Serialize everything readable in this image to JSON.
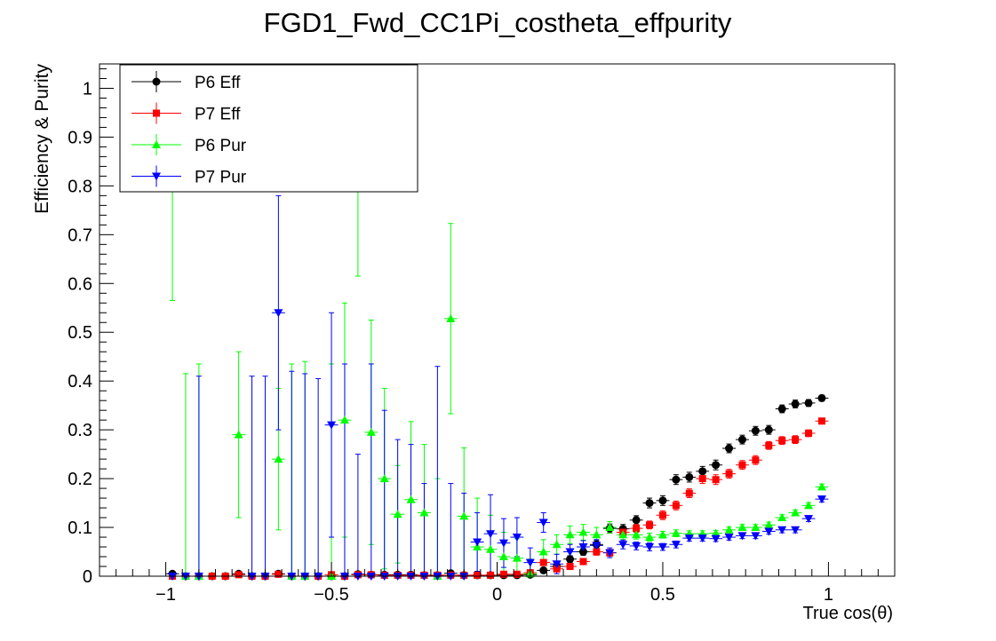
{
  "chart_data": {
    "type": "scatter",
    "title": "FGD1_Fwd_CC1Pi_costheta_effpurity",
    "xlabel": "True cos(θ)",
    "ylabel": "Efficiency & Purity",
    "xlim": [
      -1.2,
      1.2
    ],
    "ylim": [
      0,
      1.05
    ],
    "xticks": [
      -1,
      -0.5,
      0,
      0.5,
      1
    ],
    "xtick_labels": [
      "−1",
      "−0.5",
      "0",
      "0.5",
      "1"
    ],
    "yticks": [
      0,
      0.1,
      0.2,
      0.3,
      0.4,
      0.5,
      0.6,
      0.7,
      0.8,
      0.9,
      1
    ],
    "ytick_labels": [
      "0",
      "0.1",
      "0.2",
      "0.3",
      "0.4",
      "0.5",
      "0.6",
      "0.7",
      "0.8",
      "0.9",
      "1"
    ],
    "legend_position": "top-left",
    "bin_half_width": 0.02,
    "series": [
      {
        "name": "P6 Eff",
        "color": "#000000",
        "marker": "circle",
        "points": [
          [
            -0.98,
            0.005,
            0.005
          ],
          [
            -0.94,
            0.0,
            0.002
          ],
          [
            -0.9,
            0.0,
            0.002
          ],
          [
            -0.86,
            0.0,
            0.002
          ],
          [
            -0.82,
            0.0,
            0.002
          ],
          [
            -0.78,
            0.005,
            0.004
          ],
          [
            -0.74,
            0.0,
            0.002
          ],
          [
            -0.7,
            0.0,
            0.002
          ],
          [
            -0.66,
            0.005,
            0.004
          ],
          [
            -0.62,
            0.0,
            0.002
          ],
          [
            -0.58,
            0.0,
            0.002
          ],
          [
            -0.54,
            0.0,
            0.002
          ],
          [
            -0.5,
            0.0,
            0.002
          ],
          [
            -0.46,
            0.0,
            0.002
          ],
          [
            -0.42,
            0.004,
            0.003
          ],
          [
            -0.38,
            0.003,
            0.003
          ],
          [
            -0.34,
            0.003,
            0.003
          ],
          [
            -0.3,
            0.003,
            0.003
          ],
          [
            -0.26,
            0.003,
            0.003
          ],
          [
            -0.22,
            0.002,
            0.003
          ],
          [
            -0.18,
            0.002,
            0.003
          ],
          [
            -0.14,
            0.006,
            0.004
          ],
          [
            -0.1,
            0.002,
            0.003
          ],
          [
            -0.06,
            0.002,
            0.003
          ],
          [
            -0.02,
            0.002,
            0.003
          ],
          [
            0.02,
            0.002,
            0.003
          ],
          [
            0.06,
            0.002,
            0.003
          ],
          [
            0.1,
            0.003,
            0.004
          ],
          [
            0.14,
            0.012,
            0.005
          ],
          [
            0.18,
            0.02,
            0.006
          ],
          [
            0.22,
            0.035,
            0.007
          ],
          [
            0.26,
            0.05,
            0.007
          ],
          [
            0.3,
            0.065,
            0.008
          ],
          [
            0.34,
            0.098,
            0.009
          ],
          [
            0.38,
            0.097,
            0.009
          ],
          [
            0.42,
            0.115,
            0.009
          ],
          [
            0.46,
            0.15,
            0.01
          ],
          [
            0.5,
            0.155,
            0.01
          ],
          [
            0.54,
            0.198,
            0.01
          ],
          [
            0.58,
            0.203,
            0.01
          ],
          [
            0.62,
            0.215,
            0.01
          ],
          [
            0.66,
            0.228,
            0.01
          ],
          [
            0.7,
            0.262,
            0.009
          ],
          [
            0.74,
            0.28,
            0.009
          ],
          [
            0.78,
            0.298,
            0.009
          ],
          [
            0.82,
            0.3,
            0.009
          ],
          [
            0.86,
            0.343,
            0.008
          ],
          [
            0.9,
            0.353,
            0.008
          ],
          [
            0.94,
            0.355,
            0.007
          ],
          [
            0.98,
            0.365,
            0.006
          ]
        ]
      },
      {
        "name": "P7 Eff",
        "color": "#ff0000",
        "marker": "square",
        "points": [
          [
            -0.98,
            0.0,
            0.002
          ],
          [
            -0.94,
            0.0,
            0.002
          ],
          [
            -0.9,
            0.0,
            0.002
          ],
          [
            -0.86,
            0.0,
            0.002
          ],
          [
            -0.82,
            0.0,
            0.002
          ],
          [
            -0.78,
            0.003,
            0.003
          ],
          [
            -0.74,
            0.0,
            0.002
          ],
          [
            -0.7,
            0.0,
            0.002
          ],
          [
            -0.66,
            0.004,
            0.003
          ],
          [
            -0.62,
            0.0,
            0.002
          ],
          [
            -0.58,
            0.0,
            0.002
          ],
          [
            -0.54,
            0.0,
            0.002
          ],
          [
            -0.5,
            0.003,
            0.003
          ],
          [
            -0.46,
            0.0,
            0.002
          ],
          [
            -0.42,
            0.003,
            0.003
          ],
          [
            -0.38,
            0.003,
            0.003
          ],
          [
            -0.34,
            0.002,
            0.003
          ],
          [
            -0.3,
            0.002,
            0.003
          ],
          [
            -0.26,
            0.002,
            0.003
          ],
          [
            -0.22,
            0.002,
            0.003
          ],
          [
            -0.18,
            0.002,
            0.003
          ],
          [
            -0.14,
            0.002,
            0.003
          ],
          [
            -0.1,
            0.002,
            0.003
          ],
          [
            -0.06,
            0.002,
            0.003
          ],
          [
            -0.02,
            0.002,
            0.003
          ],
          [
            0.02,
            0.004,
            0.003
          ],
          [
            0.06,
            0.004,
            0.003
          ],
          [
            0.1,
            0.007,
            0.004
          ],
          [
            0.14,
            0.028,
            0.006
          ],
          [
            0.18,
            0.015,
            0.005
          ],
          [
            0.22,
            0.02,
            0.005
          ],
          [
            0.26,
            0.03,
            0.006
          ],
          [
            0.3,
            0.05,
            0.007
          ],
          [
            0.34,
            0.048,
            0.007
          ],
          [
            0.38,
            0.09,
            0.008
          ],
          [
            0.42,
            0.098,
            0.008
          ],
          [
            0.46,
            0.105,
            0.008
          ],
          [
            0.5,
            0.125,
            0.009
          ],
          [
            0.54,
            0.145,
            0.009
          ],
          [
            0.58,
            0.17,
            0.009
          ],
          [
            0.62,
            0.2,
            0.01
          ],
          [
            0.66,
            0.198,
            0.01
          ],
          [
            0.7,
            0.21,
            0.009
          ],
          [
            0.74,
            0.228,
            0.009
          ],
          [
            0.78,
            0.238,
            0.009
          ],
          [
            0.82,
            0.268,
            0.008
          ],
          [
            0.86,
            0.278,
            0.008
          ],
          [
            0.9,
            0.28,
            0.008
          ],
          [
            0.94,
            0.293,
            0.007
          ],
          [
            0.98,
            0.318,
            0.006
          ]
        ]
      },
      {
        "name": "P6 Pur",
        "color": "#00ff00",
        "marker": "triangle-up",
        "points": [
          [
            -0.98,
            0.9,
            0.335
          ],
          [
            -0.94,
            0.0,
            0.415
          ],
          [
            -0.9,
            0.0,
            0.435
          ],
          [
            -0.78,
            0.29,
            0.17
          ],
          [
            -0.66,
            0.24,
            0.145
          ],
          [
            -0.62,
            0.0,
            0.435
          ],
          [
            -0.58,
            0.0,
            0.44
          ],
          [
            -0.5,
            0.0,
            0.435
          ],
          [
            -0.46,
            0.32,
            0.24
          ],
          [
            -0.42,
            0.8,
            0.185
          ],
          [
            -0.38,
            0.295,
            0.23
          ],
          [
            -0.34,
            0.2,
            0.185
          ],
          [
            -0.3,
            0.127,
            0.1
          ],
          [
            -0.26,
            0.157,
            0.16
          ],
          [
            -0.22,
            0.13,
            0.14
          ],
          [
            -0.18,
            0.0,
            0.2
          ],
          [
            -0.14,
            0.528,
            0.195
          ],
          [
            -0.1,
            0.123,
            0.14
          ],
          [
            -0.06,
            0.06,
            0.1
          ],
          [
            -0.02,
            0.055,
            0.07
          ],
          [
            0.02,
            0.04,
            0.05
          ],
          [
            0.06,
            0.037,
            0.04
          ],
          [
            0.1,
            0.005,
            0.03
          ],
          [
            0.14,
            0.05,
            0.025
          ],
          [
            0.18,
            0.065,
            0.02
          ],
          [
            0.22,
            0.085,
            0.018
          ],
          [
            0.26,
            0.09,
            0.016
          ],
          [
            0.3,
            0.085,
            0.015
          ],
          [
            0.34,
            0.1,
            0.012
          ],
          [
            0.38,
            0.085,
            0.01
          ],
          [
            0.42,
            0.085,
            0.009
          ],
          [
            0.46,
            0.08,
            0.008
          ],
          [
            0.5,
            0.085,
            0.007
          ],
          [
            0.54,
            0.088,
            0.007
          ],
          [
            0.58,
            0.087,
            0.006
          ],
          [
            0.62,
            0.087,
            0.006
          ],
          [
            0.66,
            0.088,
            0.006
          ],
          [
            0.7,
            0.095,
            0.006
          ],
          [
            0.74,
            0.1,
            0.006
          ],
          [
            0.78,
            0.1,
            0.006
          ],
          [
            0.82,
            0.105,
            0.006
          ],
          [
            0.86,
            0.12,
            0.006
          ],
          [
            0.9,
            0.13,
            0.006
          ],
          [
            0.94,
            0.145,
            0.006
          ],
          [
            0.98,
            0.183,
            0.006
          ]
        ]
      },
      {
        "name": "P7 Pur",
        "color": "#0000ff",
        "marker": "triangle-down",
        "points": [
          [
            -0.98,
            0.0,
            0.0
          ],
          [
            -0.94,
            0.0,
            0.0
          ],
          [
            -0.9,
            0.0,
            0.41
          ],
          [
            -0.74,
            0.0,
            0.41
          ],
          [
            -0.7,
            0.0,
            0.41
          ],
          [
            -0.66,
            0.54,
            0.24
          ],
          [
            -0.62,
            0.0,
            0.42
          ],
          [
            -0.58,
            0.0,
            0.415
          ],
          [
            -0.54,
            0.0,
            0.405
          ],
          [
            -0.5,
            0.31,
            0.23
          ],
          [
            -0.46,
            0.0,
            0.435
          ],
          [
            -0.42,
            0.0,
            0.25
          ],
          [
            -0.38,
            0.0,
            0.435
          ],
          [
            -0.34,
            0.0,
            0.34
          ],
          [
            -0.3,
            0.0,
            0.28
          ],
          [
            -0.26,
            0.0,
            0.27
          ],
          [
            -0.22,
            0.0,
            0.19
          ],
          [
            -0.18,
            0.0,
            0.43
          ],
          [
            -0.14,
            0.0,
            0.19
          ],
          [
            -0.1,
            0.0,
            0.17
          ],
          [
            -0.06,
            0.07,
            0.06
          ],
          [
            -0.02,
            0.087,
            0.08
          ],
          [
            0.02,
            0.068,
            0.05
          ],
          [
            0.06,
            0.08,
            0.04
          ],
          [
            0.1,
            0.028,
            0.03
          ],
          [
            0.14,
            0.11,
            0.02
          ],
          [
            0.18,
            0.025,
            0.02
          ],
          [
            0.22,
            0.05,
            0.015
          ],
          [
            0.26,
            0.06,
            0.013
          ],
          [
            0.3,
            0.063,
            0.012
          ],
          [
            0.34,
            0.048,
            0.01
          ],
          [
            0.38,
            0.065,
            0.009
          ],
          [
            0.42,
            0.062,
            0.008
          ],
          [
            0.46,
            0.06,
            0.008
          ],
          [
            0.5,
            0.06,
            0.007
          ],
          [
            0.54,
            0.065,
            0.007
          ],
          [
            0.58,
            0.078,
            0.006
          ],
          [
            0.62,
            0.078,
            0.006
          ],
          [
            0.66,
            0.077,
            0.006
          ],
          [
            0.7,
            0.08,
            0.006
          ],
          [
            0.74,
            0.083,
            0.006
          ],
          [
            0.78,
            0.083,
            0.006
          ],
          [
            0.82,
            0.092,
            0.006
          ],
          [
            0.86,
            0.095,
            0.006
          ],
          [
            0.9,
            0.095,
            0.006
          ],
          [
            0.94,
            0.118,
            0.006
          ],
          [
            0.98,
            0.158,
            0.006
          ]
        ]
      }
    ]
  }
}
